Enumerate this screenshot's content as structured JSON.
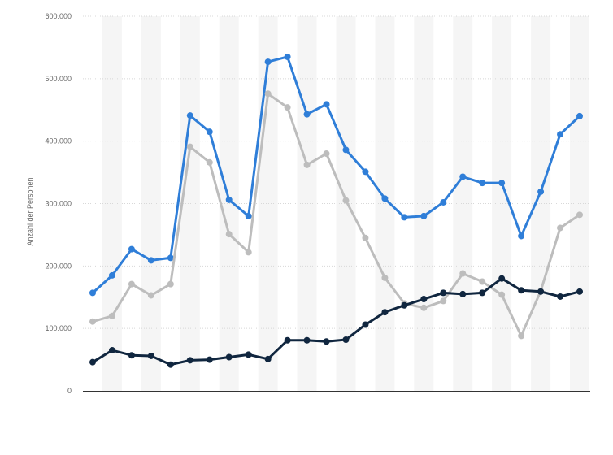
{
  "chart_data": {
    "type": "line",
    "title": "",
    "xlabel": "",
    "ylabel": "Anzahl der Personen",
    "ylim": [
      0,
      600000
    ],
    "yticks": [
      {
        "value": 0,
        "label": "0"
      },
      {
        "value": 100000,
        "label": "100.000"
      },
      {
        "value": 200000,
        "label": "200.000"
      },
      {
        "value": 300000,
        "label": "300.000"
      },
      {
        "value": 400000,
        "label": "400.000"
      },
      {
        "value": 500000,
        "label": "500.000"
      },
      {
        "value": 600000,
        "label": "600.000"
      }
    ],
    "x_count": 26,
    "grid": true,
    "series": [
      {
        "color": "#2f7ed8",
        "values": [
          157000,
          185000,
          227000,
          209000,
          213000,
          441000,
          415000,
          306000,
          280000,
          527000,
          535000,
          443000,
          459000,
          386000,
          351000,
          308000,
          278000,
          280000,
          302000,
          343000,
          333000,
          333000,
          248000,
          319000,
          411000,
          440000
        ]
      },
      {
        "color": "#bdbdbd",
        "values": [
          111000,
          120000,
          171000,
          153000,
          171000,
          391000,
          366000,
          251000,
          222000,
          476000,
          454000,
          362000,
          380000,
          305000,
          245000,
          181000,
          140000,
          133000,
          144000,
          188000,
          175000,
          154000,
          88000,
          160000,
          261000,
          282000
        ]
      },
      {
        "color": "#10263f",
        "values": [
          46000,
          65000,
          57000,
          56000,
          42000,
          49000,
          50000,
          54000,
          58000,
          51000,
          81000,
          81000,
          79000,
          82000,
          106000,
          126000,
          137000,
          147000,
          157000,
          155000,
          157000,
          180000,
          161000,
          159000,
          151000,
          159000
        ]
      }
    ]
  }
}
